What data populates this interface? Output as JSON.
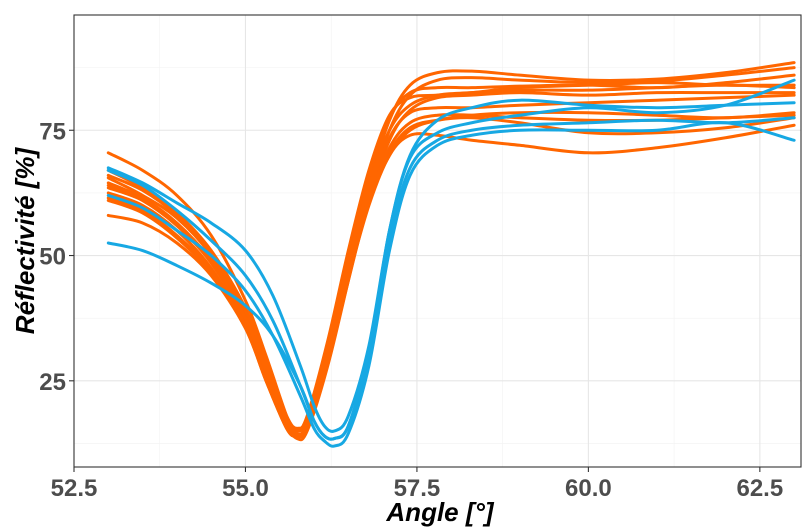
{
  "chart_data": {
    "type": "line",
    "xlabel": "Angle [°]",
    "ylabel": "Réflectivité [%]",
    "xlim": [
      52.5,
      63.1
    ],
    "ylim": [
      7.8,
      98
    ],
    "xticks": [
      52.5,
      55.0,
      57.5,
      60.0,
      62.5
    ],
    "xtick_labels": [
      "52.5",
      "55.0",
      "57.5",
      "60.0",
      "62.5"
    ],
    "yticks": [
      25,
      50,
      75
    ],
    "ytick_labels": [
      "25",
      "50",
      "75"
    ],
    "grid": true,
    "legend": "none",
    "colors": {
      "orange": "#ff6600",
      "blue": "#17a8e3"
    },
    "series": [
      {
        "color": "orange",
        "x": [
          53.0,
          53.5,
          54.0,
          54.5,
          55.0,
          55.3,
          55.6,
          55.75,
          55.9,
          56.2,
          56.5,
          56.8,
          57.1,
          57.4,
          57.8,
          58.3,
          59.0,
          60.0,
          61.0,
          62.0,
          63.0
        ],
        "y": [
          70.5,
          67.0,
          62.0,
          54.0,
          41.0,
          30.0,
          18.0,
          14.0,
          16.0,
          30.0,
          47.0,
          64.0,
          77.0,
          84.0,
          86.5,
          86.8,
          86.0,
          85.0,
          85.2,
          86.5,
          88.5
        ]
      },
      {
        "color": "orange",
        "x": [
          53.0,
          53.5,
          54.0,
          54.5,
          55.0,
          55.3,
          55.6,
          55.75,
          55.9,
          56.2,
          56.5,
          56.8,
          57.1,
          57.4,
          57.8,
          58.3,
          59.0,
          60.0,
          61.0,
          62.0,
          63.0
        ],
        "y": [
          65.5,
          62.0,
          57.5,
          50.0,
          38.0,
          27.0,
          16.5,
          13.5,
          15.0,
          28.0,
          45.0,
          62.0,
          75.0,
          82.0,
          85.0,
          85.5,
          85.0,
          84.5,
          84.8,
          86.0,
          87.5
        ]
      },
      {
        "color": "orange",
        "x": [
          53.0,
          53.5,
          54.0,
          54.5,
          55.0,
          55.3,
          55.6,
          55.75,
          55.9,
          56.2,
          56.5,
          56.8,
          57.1,
          57.4,
          57.8,
          58.3,
          59.0,
          60.0,
          61.0,
          62.0,
          63.0
        ],
        "y": [
          64.5,
          61.5,
          56.5,
          49.0,
          37.5,
          26.5,
          16.0,
          14.0,
          16.5,
          31.0,
          49.0,
          66.0,
          77.5,
          82.5,
          83.5,
          83.5,
          83.8,
          84.0,
          83.5,
          84.5,
          86.0
        ]
      },
      {
        "color": "orange",
        "x": [
          53.0,
          53.5,
          54.0,
          54.5,
          55.0,
          55.3,
          55.6,
          55.75,
          55.9,
          56.2,
          56.5,
          56.8,
          57.1,
          57.4,
          57.8,
          58.3,
          59.0,
          60.0,
          61.0,
          62.0,
          63.0
        ],
        "y": [
          63.5,
          61.0,
          56.0,
          48.5,
          37.0,
          26.0,
          16.0,
          15.0,
          18.0,
          33.0,
          51.0,
          67.0,
          78.0,
          81.5,
          82.0,
          82.5,
          83.5,
          84.0,
          84.5,
          84.0,
          84.0
        ]
      },
      {
        "color": "orange",
        "x": [
          53.0,
          53.5,
          54.0,
          54.5,
          55.0,
          55.3,
          55.6,
          55.75,
          55.9,
          56.2,
          56.5,
          56.8,
          57.1,
          57.4,
          57.8,
          58.3,
          59.0,
          60.0,
          61.0,
          62.0,
          63.0
        ],
        "y": [
          62.5,
          60.0,
          55.0,
          47.5,
          36.0,
          25.5,
          16.5,
          15.5,
          17.5,
          31.0,
          47.0,
          61.0,
          70.0,
          75.0,
          77.0,
          78.0,
          78.5,
          78.5,
          78.0,
          77.5,
          78.5
        ]
      },
      {
        "color": "orange",
        "x": [
          53.0,
          53.5,
          54.0,
          54.5,
          55.0,
          55.3,
          55.6,
          55.75,
          55.9,
          56.2,
          56.5,
          56.8,
          57.1,
          57.4,
          57.8,
          58.3,
          59.0,
          60.0,
          61.0,
          62.0,
          63.0
        ],
        "y": [
          61.5,
          59.0,
          54.0,
          47.0,
          36.0,
          25.5,
          16.0,
          15.0,
          17.0,
          30.0,
          46.0,
          60.5,
          70.5,
          75.5,
          77.0,
          77.5,
          76.5,
          74.5,
          74.5,
          75.5,
          77.5
        ]
      },
      {
        "color": "orange",
        "x": [
          53.0,
          53.5,
          54.0,
          54.5,
          55.0,
          55.3,
          55.6,
          55.75,
          55.9,
          56.2,
          56.5,
          56.8,
          57.1,
          57.4,
          57.8,
          58.3,
          59.0,
          60.0,
          61.0,
          62.0,
          63.0
        ],
        "y": [
          58.0,
          56.5,
          52.5,
          46.0,
          35.5,
          25.0,
          15.5,
          14.0,
          16.0,
          29.5,
          45.5,
          60.0,
          70.0,
          74.0,
          74.0,
          73.0,
          72.0,
          70.5,
          71.5,
          73.5,
          76.0
        ]
      },
      {
        "color": "orange",
        "x": [
          53.0,
          53.5,
          54.0,
          54.5,
          55.0,
          55.3,
          55.6,
          55.75,
          55.9,
          56.2,
          56.5,
          56.8,
          57.1,
          57.4,
          57.8,
          58.3,
          59.0,
          60.0,
          61.0,
          62.0,
          63.0
        ],
        "y": [
          66.0,
          63.0,
          58.0,
          50.5,
          39.0,
          28.0,
          17.5,
          14.5,
          16.0,
          29.0,
          45.0,
          61.0,
          73.0,
          79.0,
          81.5,
          82.0,
          82.5,
          82.0,
          82.5,
          82.5,
          82.5
        ]
      },
      {
        "color": "orange",
        "x": [
          53.0,
          53.5,
          54.0,
          54.5,
          55.0,
          55.3,
          55.6,
          55.75,
          55.9,
          56.2,
          56.5,
          56.8,
          57.1,
          57.4,
          57.8,
          58.3,
          59.0,
          60.0,
          61.0,
          62.0,
          63.0
        ],
        "y": [
          64.0,
          61.0,
          56.0,
          49.0,
          37.5,
          27.0,
          17.0,
          14.5,
          16.5,
          30.5,
          47.0,
          62.5,
          73.5,
          78.5,
          79.5,
          79.5,
          80.0,
          80.5,
          81.0,
          81.5,
          82.0
        ]
      },
      {
        "color": "orange",
        "x": [
          53.0,
          53.5,
          54.0,
          54.5,
          55.0,
          55.3,
          55.6,
          55.75,
          55.9,
          56.2,
          56.5,
          56.8,
          57.1,
          57.4,
          57.8,
          58.3,
          59.0,
          60.0,
          61.0,
          62.0,
          63.0
        ],
        "y": [
          67.0,
          63.5,
          58.5,
          51.0,
          39.5,
          28.5,
          18.0,
          15.5,
          17.5,
          31.5,
          48.5,
          64.0,
          75.0,
          80.0,
          82.0,
          82.5,
          83.0,
          83.0,
          83.5,
          84.0,
          83.5
        ]
      },
      {
        "color": "orange",
        "x": [
          53.0,
          53.5,
          54.0,
          54.5,
          55.0,
          55.3,
          55.6,
          55.75,
          55.9,
          56.2,
          56.5,
          56.8,
          57.1,
          57.4,
          57.8,
          58.3,
          59.0,
          60.0,
          61.0,
          62.0,
          63.0
        ],
        "y": [
          61.0,
          58.5,
          53.5,
          46.5,
          35.5,
          25.0,
          15.5,
          14.0,
          16.0,
          29.5,
          46.0,
          61.0,
          71.5,
          76.5,
          78.0,
          78.0,
          77.5,
          77.0,
          77.0,
          77.5,
          78.0
        ]
      },
      {
        "color": "blue",
        "x": [
          53.0,
          53.5,
          54.0,
          54.5,
          55.0,
          55.4,
          55.8,
          56.0,
          56.15,
          56.3,
          56.5,
          56.8,
          57.1,
          57.4,
          57.8,
          58.3,
          59.0,
          60.0,
          61.0,
          62.0,
          63.0
        ],
        "y": [
          67.5,
          64.5,
          60.5,
          56.5,
          51.0,
          42.0,
          28.0,
          20.0,
          16.0,
          15.0,
          18.0,
          32.0,
          55.0,
          69.5,
          74.5,
          76.5,
          78.0,
          79.5,
          78.5,
          80.0,
          85.0
        ]
      },
      {
        "color": "blue",
        "x": [
          53.0,
          53.5,
          54.0,
          54.5,
          55.0,
          55.4,
          55.8,
          56.0,
          56.15,
          56.3,
          56.5,
          56.8,
          57.1,
          57.4,
          57.8,
          58.3,
          59.0,
          60.0,
          61.0,
          62.0,
          63.0
        ],
        "y": [
          67.0,
          64.0,
          59.0,
          53.0,
          46.0,
          37.0,
          24.0,
          17.0,
          14.0,
          13.5,
          16.0,
          30.0,
          53.0,
          67.5,
          73.0,
          75.0,
          76.0,
          76.5,
          77.0,
          76.5,
          77.5
        ]
      },
      {
        "color": "blue",
        "x": [
          53.0,
          53.5,
          54.0,
          54.5,
          55.0,
          55.4,
          55.8,
          56.0,
          56.15,
          56.3,
          56.5,
          56.8,
          57.1,
          57.4,
          57.8,
          58.3,
          59.0,
          60.0,
          61.0,
          62.0,
          63.0
        ],
        "y": [
          62.0,
          59.5,
          55.0,
          50.0,
          43.0,
          34.0,
          22.0,
          15.5,
          13.0,
          12.0,
          14.5,
          28.0,
          51.0,
          66.0,
          72.0,
          74.0,
          75.0,
          75.0,
          75.0,
          76.5,
          73.0
        ]
      },
      {
        "color": "blue",
        "x": [
          53.0,
          53.5,
          54.0,
          54.5,
          55.0,
          55.4,
          55.8,
          56.0,
          56.15,
          56.3,
          56.5,
          56.8,
          57.1,
          57.4,
          57.8,
          58.3,
          59.0,
          60.0,
          61.0,
          62.0,
          63.0
        ],
        "y": [
          52.5,
          51.0,
          48.0,
          44.5,
          40.0,
          34.0,
          24.0,
          17.0,
          14.0,
          13.5,
          16.0,
          31.0,
          55.0,
          70.0,
          77.0,
          79.5,
          81.0,
          80.0,
          79.5,
          80.0,
          80.5
        ]
      }
    ]
  }
}
